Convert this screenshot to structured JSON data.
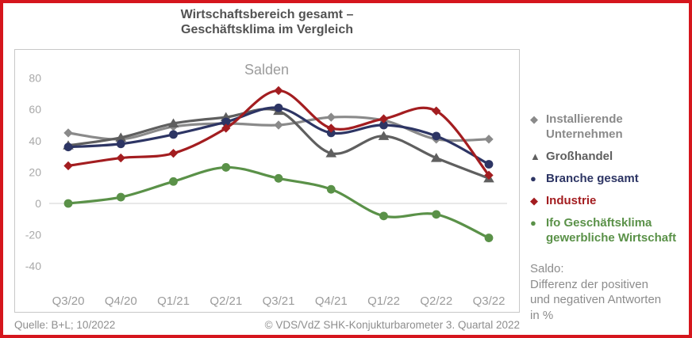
{
  "page": {
    "title_line1": "Wirtschaftsbereich gesamt –",
    "title_line2": "Geschäftsklima im Vergleich",
    "note_line1": "Saldo:",
    "note_line2": "Differenz der positiven",
    "note_line3": "und negativen Antworten",
    "note_line4": "in %",
    "footer_source": "Quelle: B+L; 10/2022",
    "footer_copyright": "© VDS/VdZ SHK-Konjukturbarometer 3. Quartal 2022",
    "border_color": "#d5161d"
  },
  "chart_data": {
    "type": "line",
    "title": "Salden",
    "subtitle_note": "smooth spline lines with point markers",
    "categories": [
      "Q3/20",
      "Q4/20",
      "Q1/21",
      "Q2/21",
      "Q3/21",
      "Q4/21",
      "Q1/22",
      "Q2/22",
      "Q3/22"
    ],
    "yticks": [
      80,
      60,
      40,
      20,
      0,
      -20,
      -40
    ],
    "ylim": [
      -45,
      85
    ],
    "grid": "zero-line-only",
    "legend_position": "right",
    "series": [
      {
        "name": "Installierende Unternehmen",
        "legend_lines": [
          "Installierende",
          "Unternehmen"
        ],
        "marker": "diamond",
        "color": "#8a8a8a",
        "values": [
          45,
          41,
          49,
          51,
          50,
          55,
          53,
          41,
          41
        ]
      },
      {
        "name": "Großhandel",
        "legend_lines": [
          "Großhandel"
        ],
        "marker": "triangle",
        "color": "#5f5f5f",
        "values": [
          37,
          42,
          51,
          55,
          59,
          32,
          43,
          29,
          16
        ]
      },
      {
        "name": "Branche gesamt",
        "legend_lines": [
          "Branche gesamt"
        ],
        "marker": "circle",
        "color": "#2d3564",
        "values": [
          36,
          38,
          44,
          52,
          61,
          45,
          50,
          43,
          25
        ]
      },
      {
        "name": "Industrie",
        "legend_lines": [
          "Industrie"
        ],
        "marker": "diamond",
        "color": "#a31d20",
        "values": [
          24,
          29,
          32,
          48,
          72,
          48,
          54,
          59,
          18
        ]
      },
      {
        "name": "Ifo Geschäftsklima gewerbliche Wirtschaft",
        "legend_lines": [
          "Ifo Geschäftsklima",
          "gewerbliche Wirtschaft"
        ],
        "marker": "circle",
        "color": "#5a9148",
        "values": [
          0,
          4,
          14,
          23,
          16,
          9,
          -8,
          -7,
          -22
        ]
      }
    ]
  }
}
